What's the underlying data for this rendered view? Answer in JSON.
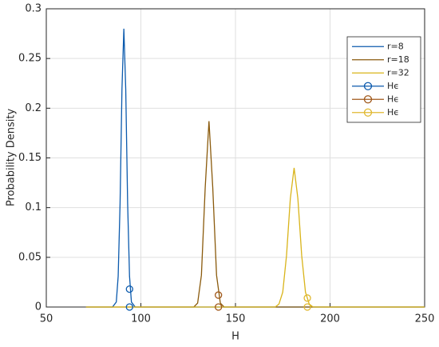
{
  "chart_data": {
    "type": "line",
    "xlabel": "H",
    "ylabel": "Probability Density",
    "xlim": [
      50,
      250
    ],
    "ylim": [
      0,
      0.3
    ],
    "xticks": [
      50,
      100,
      150,
      200,
      250
    ],
    "yticks": [
      0,
      0.05,
      0.1,
      0.15,
      0.2,
      0.25,
      0.3
    ],
    "grid": true,
    "legend": "upper right",
    "series": [
      {
        "name": "r=8",
        "color": "#0b5aad",
        "x": [
          71,
          85,
          87,
          88,
          89,
          90,
          91,
          92,
          93,
          94,
          95,
          97,
          250
        ],
        "values": [
          0,
          0,
          0.005,
          0.031,
          0.104,
          0.219,
          0.28,
          0.219,
          0.104,
          0.031,
          0.005,
          0,
          0
        ]
      },
      {
        "name": "r=18",
        "color": "#8a5a0c",
        "x": [
          71,
          128,
          130,
          132,
          134,
          136,
          138,
          140,
          142,
          144,
          250
        ],
        "values": [
          0,
          0,
          0.004,
          0.032,
          0.12,
          0.187,
          0.12,
          0.032,
          0.004,
          0,
          0
        ]
      },
      {
        "name": "r=32",
        "color": "#d9b41a",
        "x": [
          71,
          171,
          173,
          175,
          177,
          179,
          181,
          183,
          185,
          187,
          189,
          191,
          250
        ],
        "values": [
          0,
          0,
          0.003,
          0.015,
          0.052,
          0.109,
          0.14,
          0.109,
          0.052,
          0.015,
          0.003,
          0,
          0
        ]
      },
      {
        "name": "Hϵ",
        "color": "#0b5aad",
        "marker": "circle",
        "x": [
          94,
          94
        ],
        "values": [
          0.018,
          0
        ]
      },
      {
        "name": "Hϵ",
        "color": "#a0581a",
        "marker": "circle",
        "x": [
          141,
          141
        ],
        "values": [
          0.012,
          0
        ]
      },
      {
        "name": "Hϵ",
        "color": "#e0b830",
        "marker": "circle",
        "x": [
          188,
          188
        ],
        "values": [
          0.009,
          0
        ]
      }
    ]
  }
}
